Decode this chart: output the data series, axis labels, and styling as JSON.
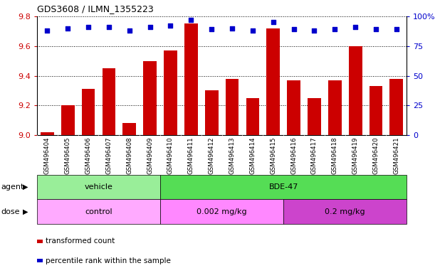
{
  "title": "GDS3608 / ILMN_1355223",
  "samples": [
    "GSM496404",
    "GSM496405",
    "GSM496406",
    "GSM496407",
    "GSM496408",
    "GSM496409",
    "GSM496410",
    "GSM496411",
    "GSM496412",
    "GSM496413",
    "GSM496414",
    "GSM496415",
    "GSM496416",
    "GSM496417",
    "GSM496418",
    "GSM496419",
    "GSM496420",
    "GSM496421"
  ],
  "transformed_count": [
    9.02,
    9.2,
    9.31,
    9.45,
    9.08,
    9.5,
    9.57,
    9.75,
    9.3,
    9.38,
    9.25,
    9.72,
    9.37,
    9.25,
    9.37,
    9.6,
    9.33,
    9.38
  ],
  "percentile_rank": [
    88,
    90,
    91,
    91,
    88,
    91,
    92,
    97,
    89,
    90,
    88,
    95,
    89,
    88,
    89,
    91,
    89,
    89
  ],
  "ylim_left": [
    9.0,
    9.8
  ],
  "ylim_right": [
    0,
    100
  ],
  "yticks_left": [
    9.0,
    9.2,
    9.4,
    9.6,
    9.8
  ],
  "yticks_right": [
    0,
    25,
    50,
    75,
    100
  ],
  "ytick_labels_right": [
    "0",
    "25",
    "50",
    "75",
    "100%"
  ],
  "bar_color": "#cc0000",
  "dot_color": "#0000cc",
  "agent_groups": [
    {
      "label": "vehicle",
      "start": 0,
      "end": 5,
      "color": "#99ee99"
    },
    {
      "label": "BDE-47",
      "start": 6,
      "end": 17,
      "color": "#55dd55"
    }
  ],
  "dose_groups": [
    {
      "label": "control",
      "start": 0,
      "end": 5,
      "color": "#ffaaff"
    },
    {
      "label": "0.002 mg/kg",
      "start": 6,
      "end": 11,
      "color": "#ff88ff"
    },
    {
      "label": "0.2 mg/kg",
      "start": 12,
      "end": 17,
      "color": "#cc44cc"
    }
  ],
  "legend_items": [
    {
      "label": "transformed count",
      "color": "#cc0000"
    },
    {
      "label": "percentile rank within the sample",
      "color": "#0000cc"
    }
  ],
  "chart_bg": "#ffffff",
  "xtick_bg": "#cccccc",
  "figure_bg": "#ffffff"
}
